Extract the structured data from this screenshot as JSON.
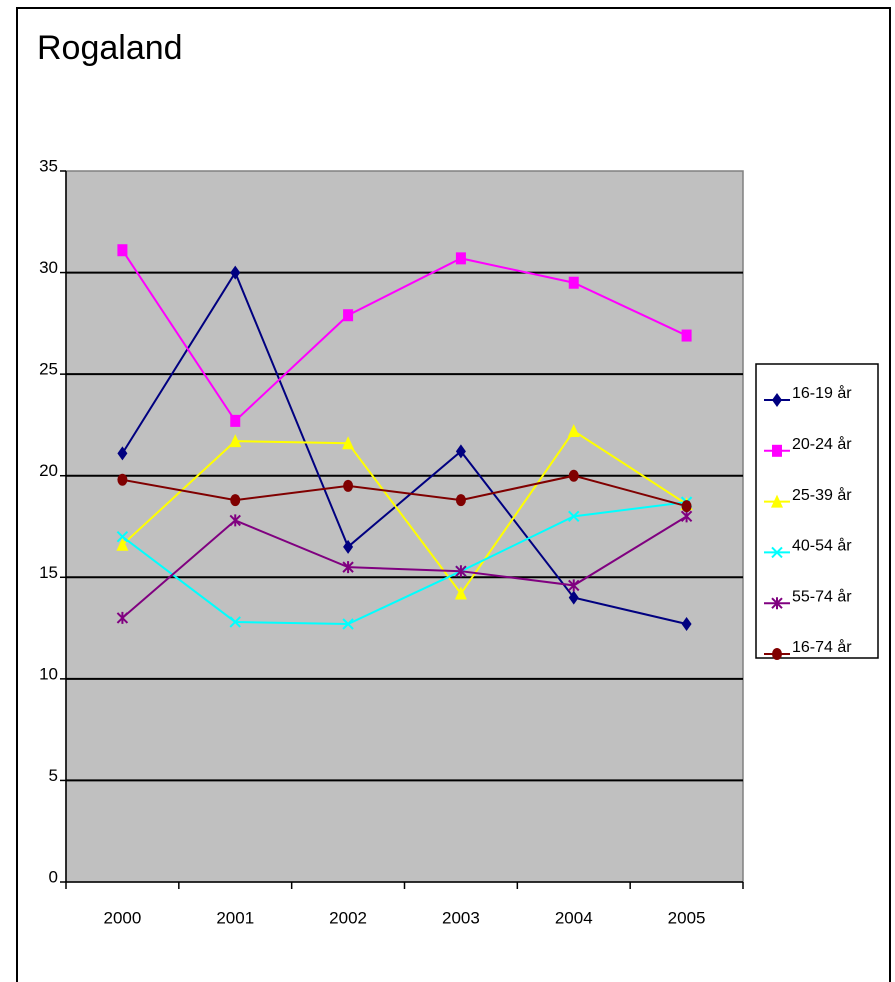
{
  "chart_data": {
    "type": "line",
    "title": "Rogaland",
    "categories": [
      "2000",
      "2001",
      "2002",
      "2003",
      "2004",
      "2005"
    ],
    "series": [
      {
        "name": "16-19 år",
        "color": "#000080",
        "marker": "diamond",
        "values": [
          21.1,
          30.0,
          16.5,
          21.2,
          14.0,
          12.7
        ]
      },
      {
        "name": "20-24 år",
        "color": "#ff00ff",
        "marker": "square",
        "values": [
          31.1,
          22.7,
          27.9,
          30.7,
          29.5,
          26.9
        ]
      },
      {
        "name": "25-39 år",
        "color": "#ffff00",
        "marker": "triangle",
        "values": [
          16.6,
          21.7,
          21.6,
          14.2,
          22.2,
          18.6
        ]
      },
      {
        "name": "40-54 år",
        "color": "#00ffff",
        "marker": "x",
        "values": [
          17.0,
          12.8,
          12.7,
          15.3,
          18.0,
          18.7
        ]
      },
      {
        "name": "55-74 år",
        "color": "#800080",
        "marker": "star",
        "values": [
          13.0,
          17.8,
          15.5,
          15.3,
          14.6,
          18.0
        ]
      },
      {
        "name": "16-74 år",
        "color": "#800000",
        "marker": "circle",
        "values": [
          19.8,
          18.8,
          19.5,
          18.8,
          20.0,
          18.5
        ]
      }
    ],
    "ylim": [
      0,
      35
    ],
    "yticks": [
      0,
      5,
      10,
      15,
      20,
      25,
      30,
      35
    ],
    "grid": true,
    "legend": "right"
  }
}
